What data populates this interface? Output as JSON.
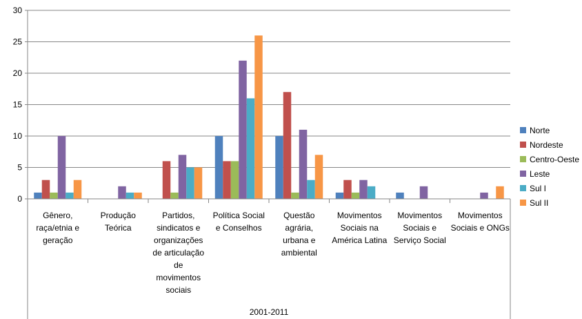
{
  "chart_data": {
    "type": "bar",
    "title": "",
    "xlabel": "2001-2011",
    "ylabel": "",
    "ylim": [
      0,
      30
    ],
    "yticks": [
      0,
      5,
      10,
      15,
      20,
      25,
      30
    ],
    "grid": true,
    "legend_position": "right",
    "categories": [
      "Gênero, raça/etnia e geração",
      "Produção Teórica",
      "Partidos, sindicatos e organizações de articulação de movimentos sociais",
      "Política Social e Conselhos",
      "Questão agrária, urbana e ambiental",
      "Movimentos Sociais na América Latina",
      "Movimentos Sociais e Serviço Social",
      "Movimentos Sociais e ONGs"
    ],
    "category_lines": [
      [
        "Gênero,",
        "raça/etnia e",
        "geração"
      ],
      [
        "Produção",
        "Teórica"
      ],
      [
        "Partidos,",
        "sindicatos e",
        "organizações",
        "de articulação",
        "de",
        "movimentos",
        "sociais"
      ],
      [
        "Política Social",
        "e Conselhos"
      ],
      [
        "Questão",
        "agrária,",
        "urbana e",
        "ambiental"
      ],
      [
        "Movimentos",
        "Sociais na",
        "América Latina"
      ],
      [
        "Movimentos",
        "Sociais e",
        "Serviço Social"
      ],
      [
        "Movimentos",
        "Sociais e ONGs"
      ]
    ],
    "series": [
      {
        "name": "Norte",
        "color": "#4F81BD",
        "values": [
          1,
          0,
          0,
          10,
          10,
          1,
          1,
          0
        ]
      },
      {
        "name": "Nordeste",
        "color": "#C0504D",
        "values": [
          3,
          0,
          6,
          6,
          17,
          3,
          0,
          0
        ]
      },
      {
        "name": "Centro-Oeste",
        "color": "#9BBB59",
        "values": [
          1,
          0,
          1,
          6,
          1,
          1,
          0,
          0
        ]
      },
      {
        "name": "Leste",
        "color": "#8064A2",
        "values": [
          10,
          2,
          7,
          22,
          11,
          3,
          2,
          1
        ]
      },
      {
        "name": "Sul I",
        "color": "#4BACC6",
        "values": [
          1,
          1,
          5,
          16,
          3,
          2,
          0,
          0
        ]
      },
      {
        "name": "Sul II",
        "color": "#F79646",
        "values": [
          3,
          1,
          5,
          26,
          7,
          0,
          0,
          2
        ]
      }
    ]
  }
}
